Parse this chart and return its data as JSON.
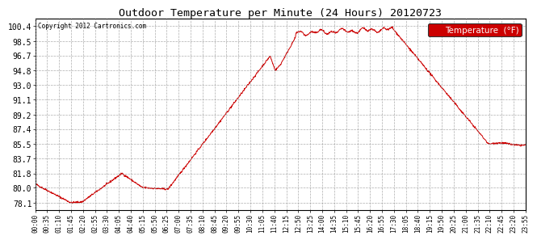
{
  "title": "Outdoor Temperature per Minute (24 Hours) 20120723",
  "copyright_text": "Copyright 2012 Cartronics.com",
  "legend_label": "Temperature  (°F)",
  "line_color": "#cc0000",
  "background_color": "#ffffff",
  "plot_bg_color": "#ffffff",
  "yticks": [
    78.1,
    80.0,
    81.8,
    83.7,
    85.5,
    87.4,
    89.2,
    91.1,
    93.0,
    94.8,
    96.7,
    98.5,
    100.4
  ],
  "ylim": [
    77.2,
    101.3
  ],
  "xtick_labels": [
    "00:00",
    "00:35",
    "01:10",
    "01:45",
    "02:20",
    "02:55",
    "03:30",
    "04:05",
    "04:40",
    "05:15",
    "05:50",
    "06:25",
    "07:00",
    "07:35",
    "08:10",
    "08:45",
    "09:20",
    "09:55",
    "10:30",
    "11:05",
    "11:40",
    "12:15",
    "12:50",
    "13:25",
    "14:00",
    "14:35",
    "15:10",
    "15:45",
    "16:20",
    "16:55",
    "17:30",
    "18:05",
    "18:40",
    "19:15",
    "19:50",
    "20:25",
    "21:00",
    "21:35",
    "22:10",
    "22:45",
    "23:20",
    "23:55"
  ]
}
